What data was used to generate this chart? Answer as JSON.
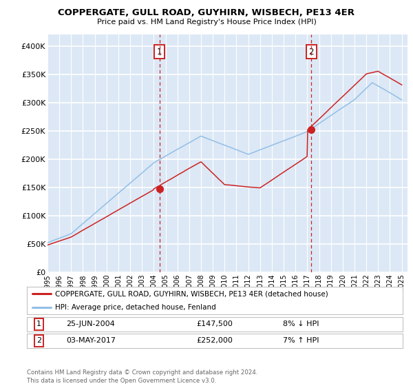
{
  "title": "COPPERGATE, GULL ROAD, GUYHIRN, WISBECH, PE13 4ER",
  "subtitle": "Price paid vs. HM Land Registry's House Price Index (HPI)",
  "fig_bg_color": "#ffffff",
  "plot_bg_color": "#dce8f5",
  "grid_color": "#ffffff",
  "ylim": [
    0,
    420000
  ],
  "yticks": [
    0,
    50000,
    100000,
    150000,
    200000,
    250000,
    300000,
    350000,
    400000
  ],
  "ytick_labels": [
    "£0",
    "£50K",
    "£100K",
    "£150K",
    "£200K",
    "£250K",
    "£300K",
    "£350K",
    "£400K"
  ],
  "xlim_start": 1995.0,
  "xlim_end": 2025.5,
  "xticks": [
    1995,
    1996,
    1997,
    1998,
    1999,
    2000,
    2001,
    2002,
    2003,
    2004,
    2005,
    2006,
    2007,
    2008,
    2009,
    2010,
    2011,
    2012,
    2013,
    2014,
    2015,
    2016,
    2017,
    2018,
    2019,
    2020,
    2021,
    2022,
    2023,
    2024,
    2025
  ],
  "hpi_color": "#92bfe8",
  "price_color": "#cc2222",
  "marker_color": "#cc2222",
  "vline_color": "#cc2222",
  "sale1_x": 2004.49,
  "sale1_y": 147500,
  "sale1_label": "1",
  "sale2_x": 2017.34,
  "sale2_y": 252000,
  "sale2_label": "2",
  "legend_entry1": "COPPERGATE, GULL ROAD, GUYHIRN, WISBECH, PE13 4ER (detached house)",
  "legend_entry2": "HPI: Average price, detached house, Fenland",
  "table_row1_num": "1",
  "table_row1_date": "25-JUN-2004",
  "table_row1_price": "£147,500",
  "table_row1_hpi": "8% ↓ HPI",
  "table_row2_num": "2",
  "table_row2_date": "03-MAY-2017",
  "table_row2_price": "£252,000",
  "table_row2_hpi": "7% ↑ HPI",
  "footnote": "Contains HM Land Registry data © Crown copyright and database right 2024.\nThis data is licensed under the Open Government Licence v3.0."
}
